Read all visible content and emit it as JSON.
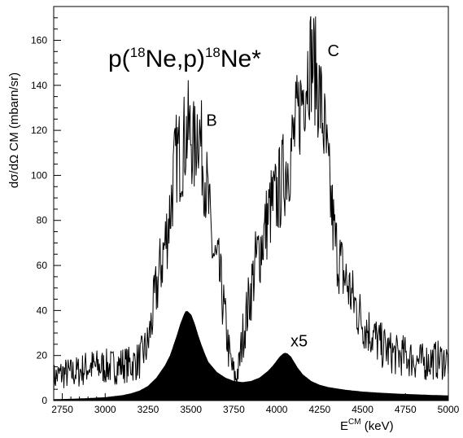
{
  "chart_data": {
    "type": "line",
    "title": "p(18Ne,p)18Ne*",
    "title_parts": {
      "p1": "p(",
      "sup1": "18",
      "mid": "Ne,p)",
      "sup2": "18",
      "end": "Ne*"
    },
    "xlabel": "E^{CM} (keV)",
    "xlabel_parts": {
      "base": "E",
      "sup": "CM",
      "rest": " (keV)"
    },
    "ylabel": "dσ/dΩ CM (mbarn/sr)",
    "xlim": [
      2700,
      5000
    ],
    "ylim": [
      0,
      175
    ],
    "xticks": [
      2750,
      3000,
      3250,
      3500,
      3750,
      4000,
      4250,
      4500,
      4750,
      5000
    ],
    "yticks": [
      0,
      20,
      40,
      60,
      80,
      100,
      120,
      140,
      160
    ],
    "annotations": [
      {
        "text": "B",
        "x": 3620,
        "y": 122
      },
      {
        "text": "C",
        "x": 4330,
        "y": 153
      },
      {
        "text": "x5",
        "x": 4130,
        "y": 24
      }
    ],
    "series": [
      {
        "style": "noisy-line",
        "x": [
          2700,
          2750,
          2800,
          2850,
          2900,
          2950,
          3000,
          3050,
          3100,
          3150,
          3200,
          3250,
          3300,
          3350,
          3380,
          3400,
          3420,
          3440,
          3460,
          3480,
          3500,
          3520,
          3540,
          3560,
          3580,
          3600,
          3620,
          3640,
          3660,
          3680,
          3700,
          3720,
          3740,
          3760,
          3780,
          3800,
          3840,
          3880,
          3920,
          3960,
          4000,
          4040,
          4080,
          4110,
          4140,
          4160,
          4180,
          4200,
          4220,
          4240,
          4260,
          4280,
          4300,
          4320,
          4340,
          4380,
          4420,
          4460,
          4500,
          4550,
          4600,
          4650,
          4700,
          4750,
          4800,
          4850,
          4900,
          4950,
          5000
        ],
        "values": [
          10,
          12,
          12,
          13,
          15,
          15,
          15,
          15,
          16,
          16,
          18,
          25,
          50,
          70,
          85,
          100,
          110,
          108,
          115,
          120,
          118,
          110,
          125,
          112,
          102,
          88,
          70,
          62,
          58,
          48,
          35,
          22,
          14,
          10,
          15,
          28,
          45,
          62,
          72,
          85,
          90,
          100,
          110,
          120,
          132,
          140,
          148,
          152,
          148,
          140,
          130,
          118,
          100,
          85,
          70,
          58,
          50,
          42,
          35,
          30,
          25,
          22,
          20,
          20,
          18,
          17,
          18,
          18,
          18
        ]
      },
      {
        "style": "filled",
        "note": "x5",
        "x": [
          2700,
          2800,
          2900,
          3000,
          3100,
          3150,
          3200,
          3250,
          3300,
          3350,
          3380,
          3400,
          3420,
          3440,
          3460,
          3470,
          3480,
          3500,
          3520,
          3540,
          3560,
          3580,
          3600,
          3650,
          3700,
          3750,
          3800,
          3850,
          3900,
          3950,
          3980,
          4000,
          4020,
          4040,
          4050,
          4060,
          4080,
          4100,
          4120,
          4150,
          4200,
          4250,
          4300,
          4400,
          4500,
          4600,
          4700,
          4800,
          4900,
          5000
        ],
        "values": [
          0.4,
          0.6,
          0.9,
          1.3,
          2.2,
          3.0,
          4.2,
          6.3,
          10,
          15.5,
          20,
          24.5,
          29,
          34,
          38,
          39.5,
          39.5,
          38,
          34,
          29,
          24.5,
          20.5,
          17,
          12.5,
          10,
          8.5,
          8,
          8.5,
          10,
          13,
          15.5,
          17.5,
          19.5,
          20.8,
          21,
          20.8,
          19.5,
          17,
          14.5,
          11.5,
          8.5,
          6.8,
          5.8,
          4.6,
          3.8,
          3.3,
          2.9,
          2.6,
          2.3,
          2.1
        ]
      }
    ]
  }
}
